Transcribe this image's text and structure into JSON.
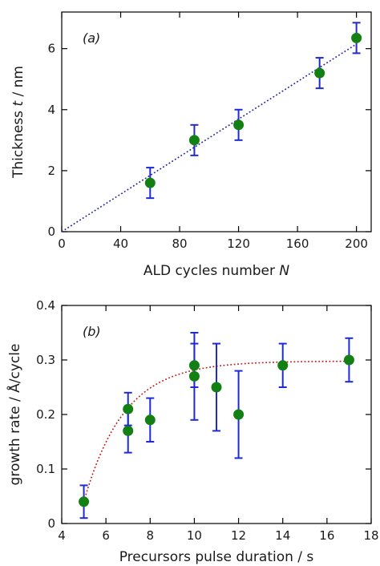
{
  "chart_data": [
    {
      "type": "scatter",
      "panel_label": "(a)",
      "xlabel_parts": [
        "ALD cycles number ",
        "N"
      ],
      "ylabel_parts": [
        "Thickness ",
        "t",
        " / nm"
      ],
      "xlim": [
        0,
        210
      ],
      "ylim": [
        0,
        7.2
      ],
      "x_ticks": [
        0,
        40,
        80,
        120,
        160,
        200
      ],
      "y_ticks": [
        0,
        2,
        4,
        6
      ],
      "x_tick_labels": [
        "0",
        "40",
        "80",
        "120",
        "160",
        "200"
      ],
      "y_tick_labels": [
        "0",
        "2",
        "4",
        "6"
      ],
      "points": [
        {
          "x": 60,
          "y": 1.6,
          "err": 0.5
        },
        {
          "x": 90,
          "y": 3.0,
          "err": 0.5
        },
        {
          "x": 120,
          "y": 3.5,
          "err": 0.5
        },
        {
          "x": 175,
          "y": 5.2,
          "err": 0.5
        },
        {
          "x": 200,
          "y": 6.35,
          "err": 0.5
        }
      ],
      "fit": {
        "style": "dotted",
        "color": "#1f1fa0",
        "x": [
          0,
          200
        ],
        "y": [
          0,
          6.15
        ]
      },
      "colors": {
        "marker": "#128012",
        "errorbar": "#1f2ad6"
      }
    },
    {
      "type": "scatter",
      "panel_label": "(b)",
      "xlabel": "Precursors pulse duration  / s",
      "ylabel": "growth rate / Å/cycle",
      "xlim": [
        4,
        18
      ],
      "ylim": [
        0,
        0.4
      ],
      "x_ticks": [
        4,
        6,
        8,
        10,
        12,
        14,
        16,
        18
      ],
      "y_ticks": [
        0,
        0.1,
        0.2,
        0.3,
        0.4
      ],
      "x_tick_labels": [
        "4",
        "6",
        "8",
        "10",
        "12",
        "14",
        "16",
        "18"
      ],
      "y_tick_labels": [
        "0",
        "0.1",
        "0.2",
        "0.3",
        "0.4"
      ],
      "points": [
        {
          "x": 5,
          "y": 0.04,
          "err": 0.03
        },
        {
          "x": 7,
          "y": 0.21,
          "err": 0.03
        },
        {
          "x": 7,
          "y": 0.17,
          "err": 0.04
        },
        {
          "x": 8,
          "y": 0.19,
          "err": 0.04
        },
        {
          "x": 10,
          "y": 0.29,
          "err": 0.04
        },
        {
          "x": 10,
          "y": 0.27,
          "err": 0.08
        },
        {
          "x": 11,
          "y": 0.25,
          "err": 0.08
        },
        {
          "x": 12,
          "y": 0.2,
          "err": 0.08
        },
        {
          "x": 14,
          "y": 0.29,
          "err": 0.04
        },
        {
          "x": 17,
          "y": 0.3,
          "err": 0.04
        }
      ],
      "fit": {
        "style": "dotted",
        "color": "#c01818",
        "model": "exponential-saturation",
        "x0": 5,
        "y0": 0.04,
        "ymax": 0.298,
        "rate": 0.55
      },
      "colors": {
        "marker": "#128012",
        "errorbar": "#1f2ad6"
      }
    }
  ]
}
